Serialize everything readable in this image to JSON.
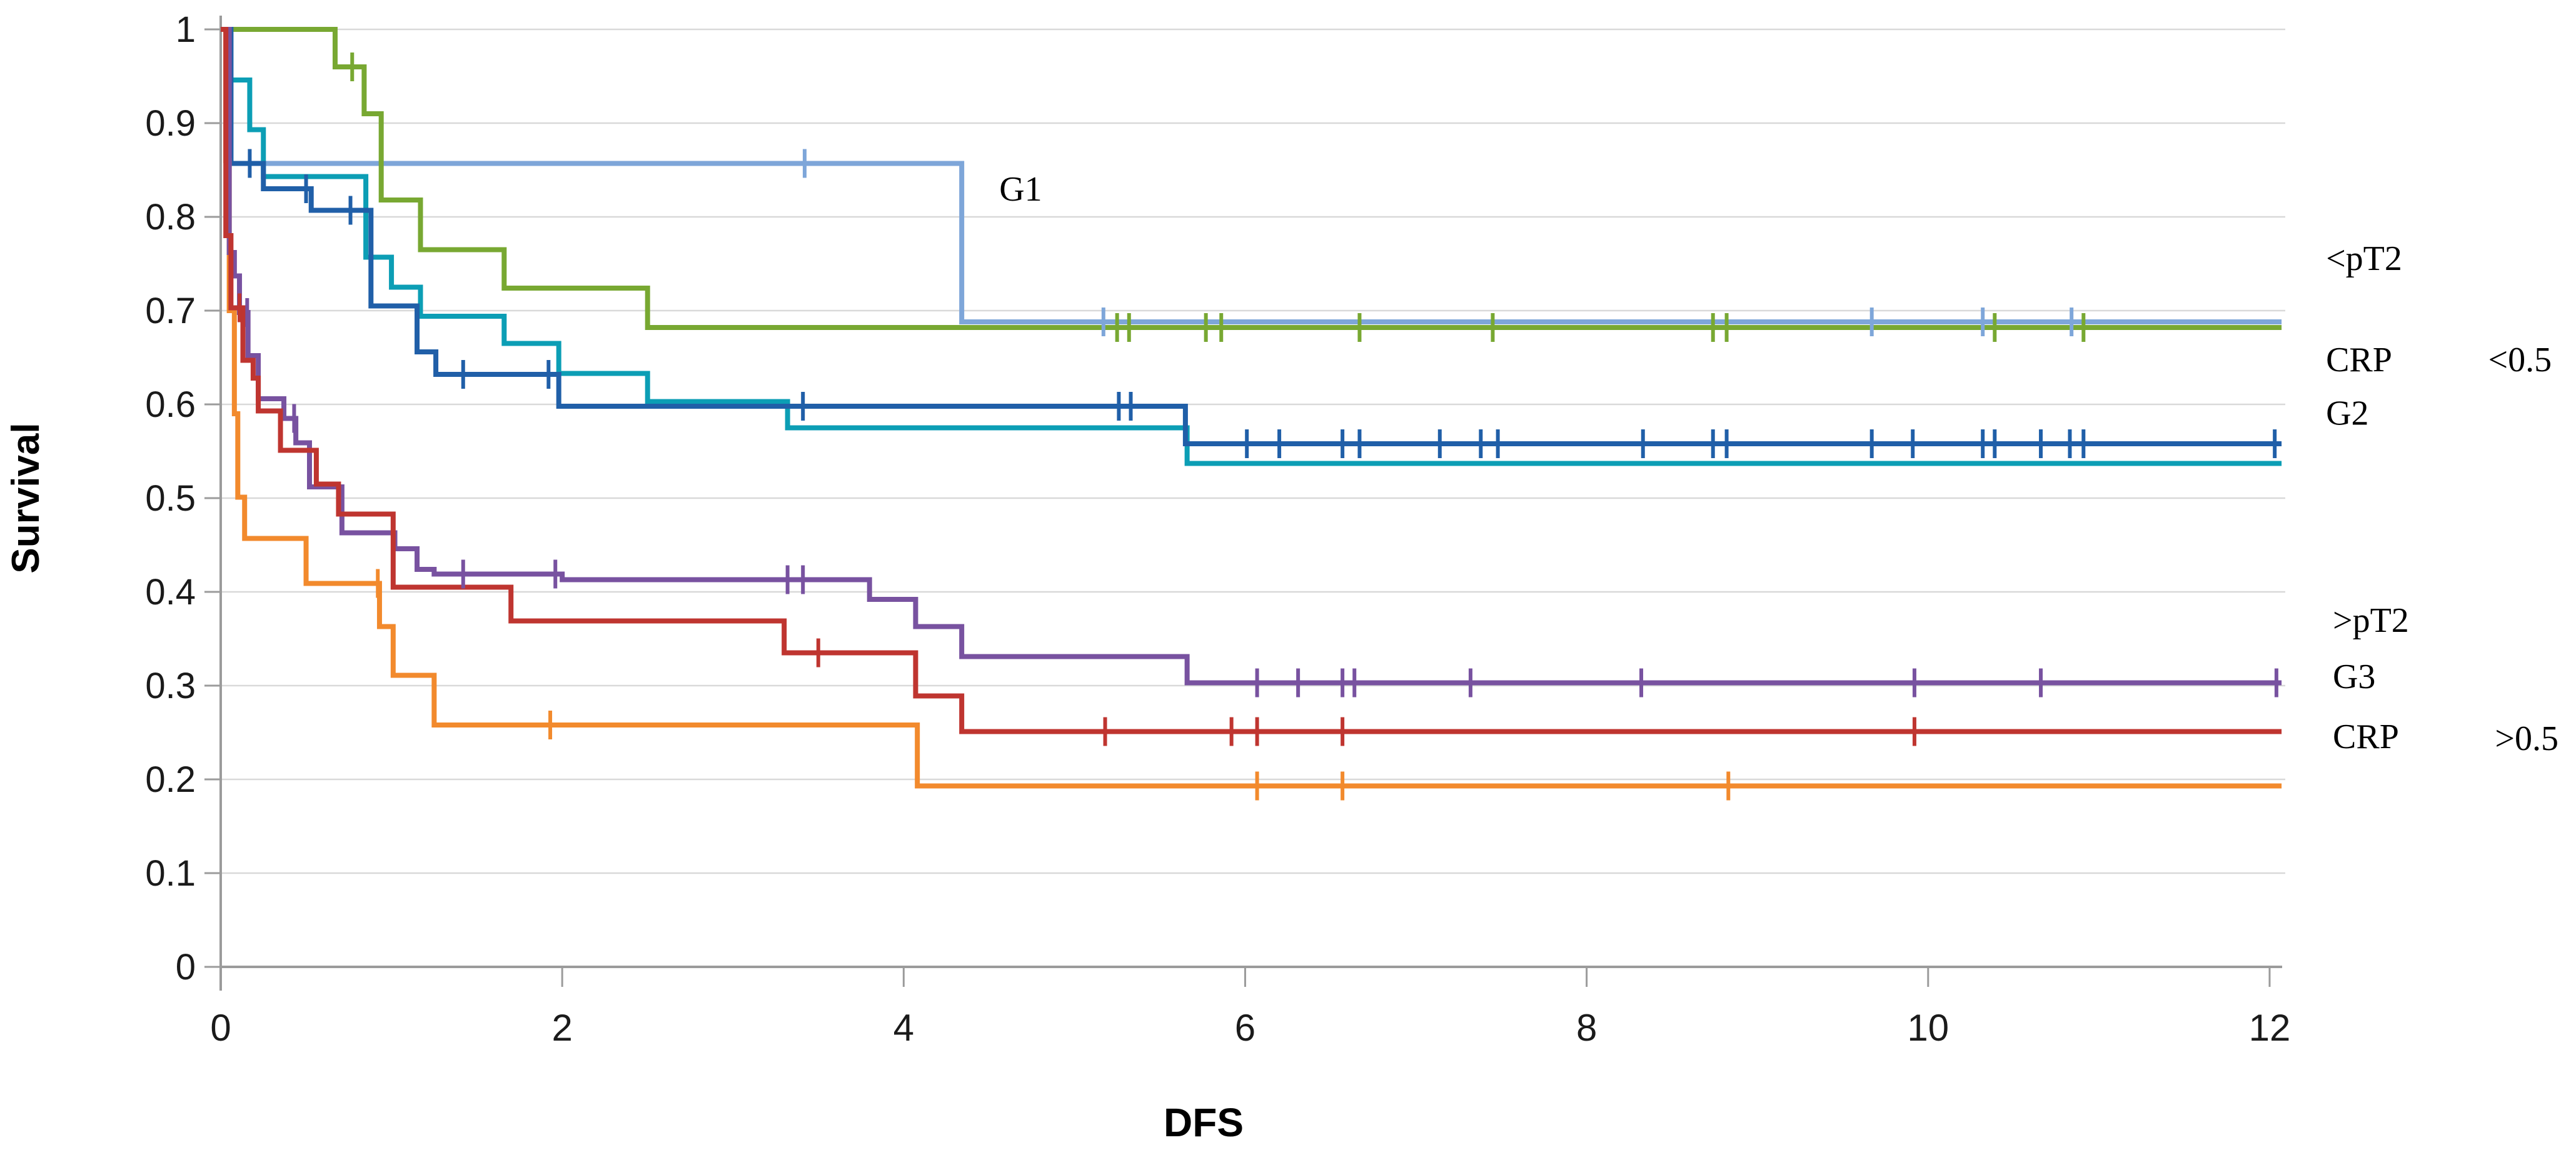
{
  "chart_data": {
    "type": "line",
    "subtype": "kaplan-meier-step",
    "title": "",
    "xlabel": "DFS",
    "ylabel": "Survival",
    "xlim": [
      0,
      12
    ],
    "ylim": [
      0,
      1
    ],
    "x_ticks": [
      0,
      2,
      4,
      6,
      8,
      10,
      12
    ],
    "y_ticks": [
      1,
      0.9,
      0.8,
      0.7,
      0.6,
      0.5,
      0.4,
      0.3,
      0.2,
      0.1,
      0
    ],
    "grid": "horizontal",
    "legend_position": "inline-annotations",
    "colors": {
      "gridline": "#d9d9d9",
      "axis": "#9b9b9b",
      "tick_text": "#1a1a1a",
      "annotation_text": "#000000"
    },
    "series": [
      {
        "name": "G1",
        "color": "#7EA6D9",
        "steps": [
          [
            0,
            1
          ],
          [
            0.06,
            0.857
          ],
          [
            4.34,
            0.688
          ],
          [
            12.07,
            0.688
          ]
        ],
        "censors": [
          [
            3.42,
            0.857
          ],
          [
            5.17,
            0.688
          ],
          [
            9.67,
            0.688
          ],
          [
            10.32,
            0.688
          ],
          [
            10.84,
            0.688
          ]
        ]
      },
      {
        "name": "<pT2",
        "color": "#78A832",
        "steps": [
          [
            0,
            1
          ],
          [
            0.67,
            0.96
          ],
          [
            0.84,
            0.91
          ],
          [
            0.94,
            0.818
          ],
          [
            1.17,
            0.765
          ],
          [
            1.66,
            0.724
          ],
          [
            2.5,
            0.682
          ],
          [
            12.07,
            0.682
          ]
        ],
        "censors": [
          [
            0.77,
            0.96
          ],
          [
            5.25,
            0.682
          ],
          [
            5.32,
            0.682
          ],
          [
            5.77,
            0.682
          ],
          [
            5.86,
            0.682
          ],
          [
            6.67,
            0.682
          ],
          [
            7.45,
            0.682
          ],
          [
            8.74,
            0.682
          ],
          [
            8.82,
            0.682
          ],
          [
            10.39,
            0.682
          ],
          [
            10.91,
            0.682
          ]
        ]
      },
      {
        "name": "CRP <0.5",
        "color": "#0C9EB5",
        "steps": [
          [
            0,
            1
          ],
          [
            0.04,
            0.946
          ],
          [
            0.17,
            0.893
          ],
          [
            0.25,
            0.843
          ],
          [
            0.85,
            0.757
          ],
          [
            1.0,
            0.725
          ],
          [
            1.17,
            0.694
          ],
          [
            1.66,
            0.665
          ],
          [
            1.98,
            0.633
          ],
          [
            2.5,
            0.603
          ],
          [
            3.32,
            0.575
          ],
          [
            5.66,
            0.537
          ],
          [
            12.07,
            0.537
          ]
        ],
        "censors": []
      },
      {
        "name": "G2",
        "color": "#205FA8",
        "steps": [
          [
            0,
            1
          ],
          [
            0.06,
            0.857
          ],
          [
            0.25,
            0.83
          ],
          [
            0.53,
            0.807
          ],
          [
            0.88,
            0.705
          ],
          [
            1.15,
            0.656
          ],
          [
            1.26,
            0.632
          ],
          [
            1.98,
            0.598
          ],
          [
            5.65,
            0.558
          ],
          [
            12.07,
            0.558
          ]
        ],
        "censors": [
          [
            0.17,
            0.857
          ],
          [
            0.5,
            0.83
          ],
          [
            0.76,
            0.807
          ],
          [
            1.42,
            0.632
          ],
          [
            1.92,
            0.632
          ],
          [
            3.41,
            0.598
          ],
          [
            5.26,
            0.598
          ],
          [
            5.33,
            0.598
          ],
          [
            6.01,
            0.558
          ],
          [
            6.2,
            0.558
          ],
          [
            6.57,
            0.558
          ],
          [
            6.67,
            0.558
          ],
          [
            7.14,
            0.558
          ],
          [
            7.38,
            0.558
          ],
          [
            7.48,
            0.558
          ],
          [
            8.33,
            0.558
          ],
          [
            8.74,
            0.558
          ],
          [
            8.82,
            0.558
          ],
          [
            9.67,
            0.558
          ],
          [
            9.91,
            0.558
          ],
          [
            10.32,
            0.558
          ],
          [
            10.39,
            0.558
          ],
          [
            10.66,
            0.558
          ],
          [
            10.83,
            0.558
          ],
          [
            10.91,
            0.558
          ],
          [
            12.03,
            0.558
          ]
        ]
      },
      {
        "name": "CRP >0.5",
        "color": "#F28A2D",
        "steps": [
          [
            0,
            1
          ],
          [
            0.03,
            0.86
          ],
          [
            0.05,
            0.7
          ],
          [
            0.08,
            0.59
          ],
          [
            0.1,
            0.501
          ],
          [
            0.14,
            0.457
          ],
          [
            0.5,
            0.409
          ],
          [
            0.93,
            0.363
          ],
          [
            1.01,
            0.311
          ],
          [
            1.25,
            0.258
          ],
          [
            4.08,
            0.193
          ],
          [
            12.07,
            0.193
          ]
        ],
        "censors": [
          [
            0.92,
            0.409
          ],
          [
            1.93,
            0.258
          ],
          [
            6.07,
            0.193
          ],
          [
            6.57,
            0.193
          ],
          [
            8.83,
            0.193
          ]
        ]
      },
      {
        "name": ">pT2",
        "color": "#7852A0",
        "steps": [
          [
            0,
            1
          ],
          [
            0.05,
            0.762
          ],
          [
            0.08,
            0.737
          ],
          [
            0.11,
            0.698
          ],
          [
            0.16,
            0.652
          ],
          [
            0.22,
            0.606
          ],
          [
            0.37,
            0.585
          ],
          [
            0.44,
            0.559
          ],
          [
            0.52,
            0.512
          ],
          [
            0.71,
            0.463
          ],
          [
            1.02,
            0.446
          ],
          [
            1.15,
            0.424
          ],
          [
            1.25,
            0.419
          ],
          [
            2.0,
            0.413
          ],
          [
            3.8,
            0.392
          ],
          [
            4.07,
            0.363
          ],
          [
            4.34,
            0.331
          ],
          [
            5.66,
            0.303
          ],
          [
            12.07,
            0.303
          ]
        ],
        "censors": [
          [
            0.155,
            0.698
          ],
          [
            0.43,
            0.585
          ],
          [
            1.42,
            0.419
          ],
          [
            1.96,
            0.419
          ],
          [
            3.32,
            0.413
          ],
          [
            3.41,
            0.413
          ],
          [
            6.07,
            0.303
          ],
          [
            6.31,
            0.303
          ],
          [
            6.57,
            0.303
          ],
          [
            6.64,
            0.303
          ],
          [
            7.32,
            0.303
          ],
          [
            8.32,
            0.303
          ],
          [
            9.92,
            0.303
          ],
          [
            10.66,
            0.303
          ],
          [
            12.04,
            0.303
          ]
        ]
      },
      {
        "name": "G3",
        "color": "#BF3530",
        "steps": [
          [
            0,
            1
          ],
          [
            0.03,
            0.78
          ],
          [
            0.06,
            0.703
          ],
          [
            0.13,
            0.647
          ],
          [
            0.19,
            0.628
          ],
          [
            0.22,
            0.593
          ],
          [
            0.35,
            0.551
          ],
          [
            0.56,
            0.515
          ],
          [
            0.69,
            0.483
          ],
          [
            1.01,
            0.405
          ],
          [
            1.7,
            0.369
          ],
          [
            3.3,
            0.335
          ],
          [
            4.07,
            0.289
          ],
          [
            4.34,
            0.251
          ],
          [
            12.07,
            0.251
          ]
        ],
        "censors": [
          [
            0.11,
            0.703
          ],
          [
            3.5,
            0.335
          ],
          [
            5.18,
            0.251
          ],
          [
            5.92,
            0.251
          ],
          [
            6.07,
            0.251
          ],
          [
            6.57,
            0.251
          ],
          [
            9.92,
            0.251
          ]
        ]
      }
    ],
    "annotations": [
      {
        "text": "G1",
        "t": 4.56,
        "v": 0.83
      },
      {
        "text": "<pT2",
        "t": 12.33,
        "v": 0.756
      },
      {
        "text": "CRP",
        "t": 12.33,
        "v": 0.648
      },
      {
        "text": "<0.5",
        "t": 13.28,
        "v": 0.648
      },
      {
        "text": "G2",
        "t": 12.33,
        "v": 0.591
      },
      {
        "text": ">pT2",
        "t": 12.37,
        "v": 0.37
      },
      {
        "text": "G3",
        "t": 12.37,
        "v": 0.31
      },
      {
        "text": "CRP",
        "t": 12.37,
        "v": 0.246
      },
      {
        "text": ">0.5",
        "t": 13.32,
        "v": 0.244
      }
    ]
  }
}
